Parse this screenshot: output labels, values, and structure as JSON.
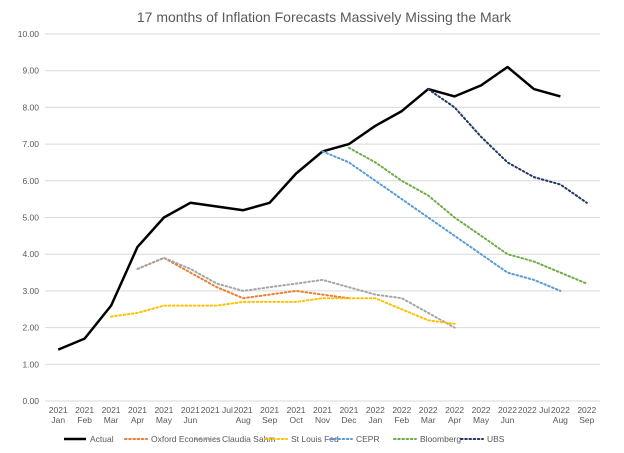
{
  "chart_data": {
    "type": "line",
    "title": "17 months of Inflation Forecasts Massively Missing the Mark",
    "xlabel": "",
    "ylabel": "",
    "ylim": [
      0,
      10
    ],
    "yticks": [
      "0.00",
      "1.00",
      "2.00",
      "3.00",
      "4.00",
      "5.00",
      "6.00",
      "7.00",
      "8.00",
      "9.00",
      "10.00"
    ],
    "categories": [
      [
        "2021",
        "Jan"
      ],
      [
        "2021",
        "Feb"
      ],
      [
        "2021",
        "Mar"
      ],
      [
        "2021",
        "Apr"
      ],
      [
        "2021",
        "May"
      ],
      [
        "2021",
        "Jun"
      ],
      [
        "2021 Jul"
      ],
      [
        "2021",
        "Aug"
      ],
      [
        "2021",
        "Sep"
      ],
      [
        "2021",
        "Oct"
      ],
      [
        "2021",
        "Nov"
      ],
      [
        "2021",
        "Dec"
      ],
      [
        "2022",
        "Jan"
      ],
      [
        "2022",
        "Feb"
      ],
      [
        "2022",
        "Mar"
      ],
      [
        "2022",
        "Apr"
      ],
      [
        "2022",
        "May"
      ],
      [
        "2022",
        "Jun"
      ],
      [
        "2022 Jul"
      ],
      [
        "2022",
        "Aug"
      ],
      [
        "2022",
        "Sep"
      ]
    ],
    "grid": true,
    "legend_position": "bottom",
    "series": [
      {
        "name": "Actual",
        "color": "#000000",
        "style": "solid",
        "values": [
          1.4,
          1.7,
          2.6,
          4.2,
          5.0,
          5.4,
          5.3,
          5.2,
          5.4,
          6.2,
          6.8,
          7.0,
          7.5,
          7.9,
          8.5,
          8.3,
          8.6,
          9.1,
          8.5,
          8.3,
          null
        ]
      },
      {
        "name": "Oxford Economics",
        "color": "#ed7d31",
        "style": "dotted",
        "values": [
          null,
          null,
          null,
          3.6,
          3.9,
          3.5,
          3.1,
          2.8,
          2.9,
          3.0,
          2.9,
          2.8,
          null,
          null,
          null,
          null,
          null,
          null,
          null,
          null,
          null
        ]
      },
      {
        "name": "Claudia Sahm",
        "color": "#a5a5a5",
        "style": "dotted",
        "values": [
          null,
          null,
          null,
          3.6,
          3.9,
          3.6,
          3.2,
          3.0,
          3.1,
          3.2,
          3.3,
          3.1,
          2.9,
          2.8,
          2.4,
          2.0,
          null,
          null,
          null,
          null,
          null
        ]
      },
      {
        "name": "St Louis Fed",
        "color": "#ffc000",
        "style": "dotted",
        "values": [
          null,
          null,
          2.3,
          2.4,
          2.6,
          2.6,
          2.6,
          2.7,
          2.7,
          2.7,
          2.8,
          2.8,
          2.8,
          2.5,
          2.2,
          2.1,
          null,
          null,
          null,
          null,
          null
        ]
      },
      {
        "name": "CEPR",
        "color": "#5b9bd5",
        "style": "dotted",
        "values": [
          null,
          null,
          null,
          null,
          null,
          null,
          null,
          null,
          null,
          null,
          6.8,
          6.5,
          6.0,
          5.5,
          5.0,
          4.5,
          4.0,
          3.5,
          3.3,
          3.0,
          null
        ]
      },
      {
        "name": "Bloomberg",
        "color": "#70ad47",
        "style": "dotted",
        "values": [
          null,
          null,
          null,
          null,
          null,
          null,
          null,
          null,
          null,
          null,
          null,
          6.9,
          6.5,
          6.0,
          5.6,
          5.0,
          4.5,
          4.0,
          3.8,
          3.5,
          3.2
        ]
      },
      {
        "name": "UBS",
        "color": "#203864",
        "style": "dotted",
        "values": [
          null,
          null,
          null,
          null,
          null,
          null,
          null,
          null,
          null,
          null,
          null,
          null,
          null,
          null,
          8.5,
          8.0,
          7.2,
          6.5,
          6.1,
          5.9,
          5.4
        ]
      }
    ]
  }
}
